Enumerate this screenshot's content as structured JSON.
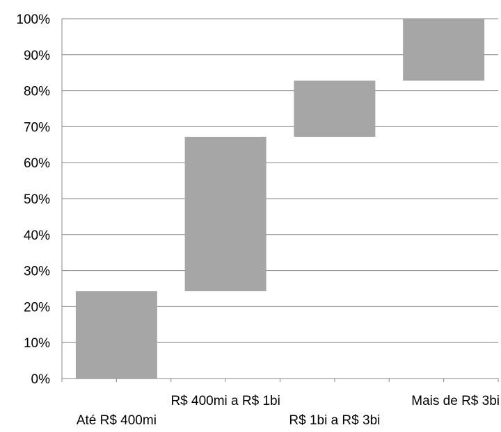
{
  "chart_data": {
    "type": "bar",
    "subtype": "waterfall",
    "categories": [
      "Até R$ 400mi",
      "R$ 400mi a R$ 1bi",
      "R$ 1bi a R$ 3bi",
      "Mais de R$ 3bi"
    ],
    "series": [
      {
        "values": [
          [
            0,
            24.3
          ],
          [
            24.3,
            67.2
          ],
          [
            67.2,
            82.8
          ],
          [
            82.8,
            100
          ]
        ]
      }
    ],
    "ylim": [
      0,
      100
    ],
    "yticks": [
      "0%",
      "10%",
      "20%",
      "30%",
      "40%",
      "50%",
      "60%",
      "70%",
      "80%",
      "90%",
      "100%"
    ],
    "grid": true,
    "legend": "none",
    "bar_color": "#a6a6a6",
    "grid_color": "#868686",
    "title": "",
    "xlabel": "",
    "ylabel": ""
  }
}
